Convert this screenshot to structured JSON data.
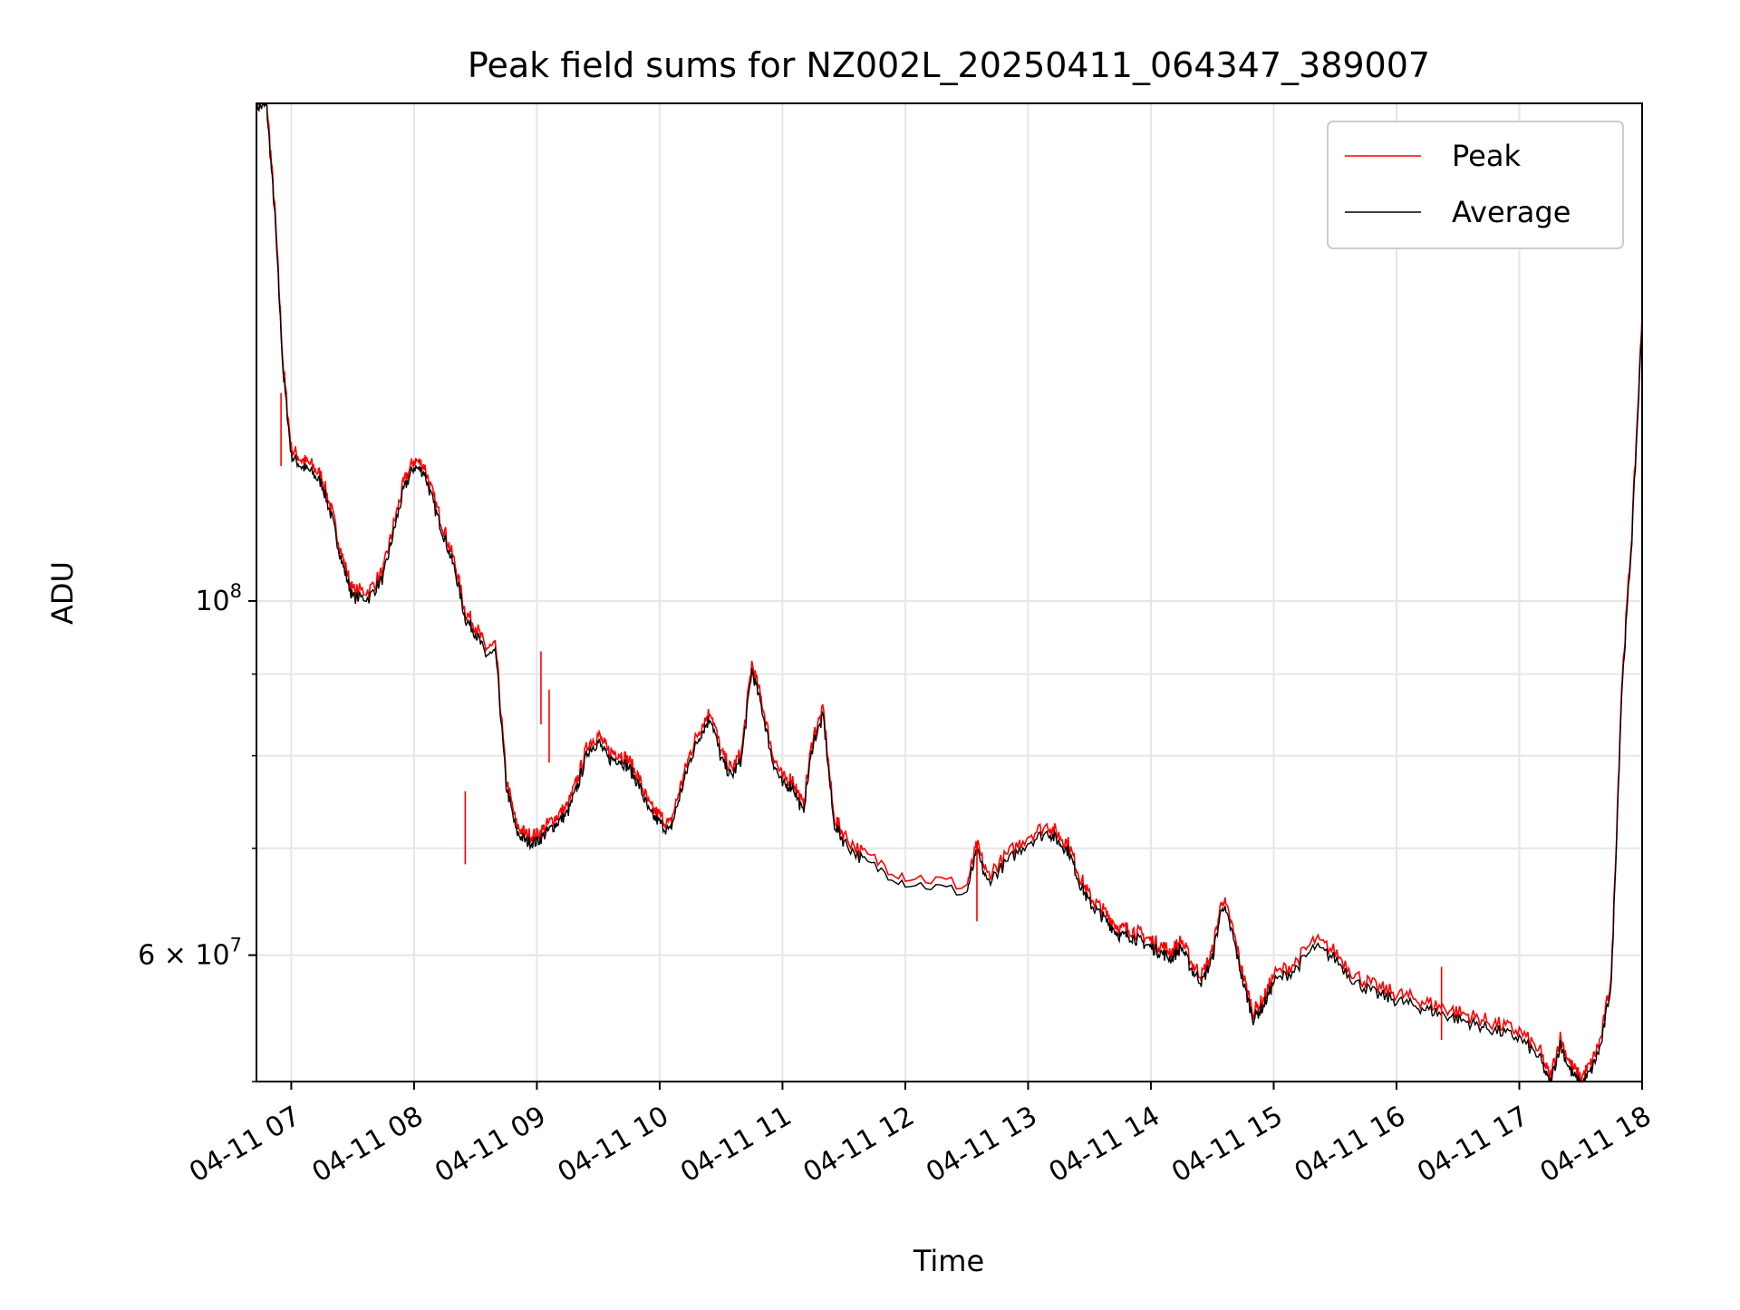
{
  "chart_data": {
    "type": "line",
    "title": "Peak field sums for NZ002L_20250411_064347_389007",
    "xlabel": "Time",
    "ylabel": "ADU",
    "yscale": "log",
    "grid": true,
    "legend_position": "top-right",
    "xlim": [
      "2025-04-11 06:43",
      "2025-04-11 18:00"
    ],
    "ylim": [
      50000000,
      205000000
    ],
    "x_ticks": [
      "04-11 07",
      "04-11 08",
      "04-11 09",
      "04-11 10",
      "04-11 11",
      "04-11 12",
      "04-11 13",
      "04-11 14",
      "04-11 15",
      "04-11 16",
      "04-11 17",
      "04-11 18"
    ],
    "y_ticks": [
      {
        "value": 100000000,
        "base": "10",
        "exp": "8",
        "mult": ""
      },
      {
        "value": 60000000,
        "base": "10",
        "exp": "7",
        "mult": "6 × "
      }
    ],
    "y_minor_ticks": [
      50000000,
      60000000,
      70000000,
      80000000,
      90000000
    ],
    "series": [
      {
        "name": "Peak",
        "color": "#ff0000",
        "x": [
          "2025-04-11 06:43",
          "2025-04-11 06:48",
          "2025-04-11 06:52",
          "2025-04-11 06:56",
          "2025-04-11 07:00",
          "2025-04-11 07:05",
          "2025-04-11 07:10",
          "2025-04-11 07:15",
          "2025-04-11 07:20",
          "2025-04-11 07:25",
          "2025-04-11 07:30",
          "2025-04-11 07:38",
          "2025-04-11 07:45",
          "2025-04-11 07:50",
          "2025-04-11 07:55",
          "2025-04-11 08:00",
          "2025-04-11 08:05",
          "2025-04-11 08:10",
          "2025-04-11 08:15",
          "2025-04-11 08:20",
          "2025-04-11 08:25",
          "2025-04-11 08:30",
          "2025-04-11 08:35",
          "2025-04-11 08:40",
          "2025-04-11 08:45",
          "2025-04-11 08:50",
          "2025-04-11 08:55",
          "2025-04-11 09:00",
          "2025-04-11 09:05",
          "2025-04-11 09:10",
          "2025-04-11 09:15",
          "2025-04-11 09:20",
          "2025-04-11 09:25",
          "2025-04-11 09:30",
          "2025-04-11 09:35",
          "2025-04-11 09:40",
          "2025-04-11 09:45",
          "2025-04-11 09:50",
          "2025-04-11 09:55",
          "2025-04-11 10:00",
          "2025-04-11 10:05",
          "2025-04-11 10:10",
          "2025-04-11 10:15",
          "2025-04-11 10:20",
          "2025-04-11 10:25",
          "2025-04-11 10:30",
          "2025-04-11 10:35",
          "2025-04-11 10:40",
          "2025-04-11 10:45",
          "2025-04-11 10:50",
          "2025-04-11 10:55",
          "2025-04-11 11:00",
          "2025-04-11 11:05",
          "2025-04-11 11:10",
          "2025-04-11 11:15",
          "2025-04-11 11:20",
          "2025-04-11 11:25",
          "2025-04-11 11:30",
          "2025-04-11 11:40",
          "2025-04-11 12:00",
          "2025-04-11 12:30",
          "2025-04-11 12:35",
          "2025-04-11 12:40",
          "2025-04-11 12:50",
          "2025-04-11 13:00",
          "2025-04-11 13:10",
          "2025-04-11 13:15",
          "2025-04-11 13:20",
          "2025-04-11 13:25",
          "2025-04-11 13:30",
          "2025-04-11 13:35",
          "2025-04-11 13:40",
          "2025-04-11 13:45",
          "2025-04-11 13:50",
          "2025-04-11 13:55",
          "2025-04-11 14:00",
          "2025-04-11 14:05",
          "2025-04-11 14:10",
          "2025-04-11 14:15",
          "2025-04-11 14:20",
          "2025-04-11 14:25",
          "2025-04-11 14:30",
          "2025-04-11 14:35",
          "2025-04-11 14:40",
          "2025-04-11 14:45",
          "2025-04-11 14:50",
          "2025-04-11 14:55",
          "2025-04-11 15:00",
          "2025-04-11 15:10",
          "2025-04-11 15:20",
          "2025-04-11 15:30",
          "2025-04-11 15:40",
          "2025-04-11 15:50",
          "2025-04-11 16:00",
          "2025-04-11 16:10",
          "2025-04-11 16:20",
          "2025-04-11 16:30",
          "2025-04-11 16:40",
          "2025-04-11 16:50",
          "2025-04-11 17:00",
          "2025-04-11 17:10",
          "2025-04-11 17:15",
          "2025-04-11 17:20",
          "2025-04-11 17:25",
          "2025-04-11 17:30",
          "2025-04-11 17:35",
          "2025-04-11 17:40",
          "2025-04-11 17:45",
          "2025-04-11 17:50",
          "2025-04-11 17:55",
          "2025-04-11 18:00"
        ],
        "values": [
          205000000,
          205000000,
          175000000,
          140000000,
          124000000,
          122000000,
          121000000,
          119000000,
          113000000,
          106000000,
          101000000,
          101000000,
          104000000,
          111000000,
          118000000,
          122000000,
          121000000,
          115000000,
          110000000,
          105000000,
          98000000,
          96000000,
          93000000,
          93000000,
          77000000,
          72000000,
          71000000,
          71000000,
          72000000,
          73000000,
          74000000,
          77000000,
          81000000,
          82000000,
          80000000,
          80000000,
          79000000,
          77000000,
          74000000,
          73000000,
          72000000,
          76000000,
          80000000,
          83000000,
          85000000,
          80000000,
          78000000,
          80000000,
          91000000,
          86000000,
          80000000,
          77000000,
          77000000,
          74000000,
          82000000,
          85000000,
          73000000,
          71000000,
          69000000,
          67000000,
          66000000,
          70000000,
          67000000,
          69000000,
          71000000,
          72000000,
          71000000,
          70000000,
          67000000,
          65000000,
          64000000,
          63000000,
          62000000,
          62000000,
          61500000,
          61000000,
          60500000,
          60000000,
          61000000,
          59000000,
          58000000,
          60000000,
          65000000,
          62000000,
          58000000,
          55000000,
          56000000,
          58000000,
          59000000,
          61000000,
          60000000,
          58000000,
          57000000,
          56500000,
          56000000,
          55500000,
          55000000,
          54500000,
          54000000,
          53500000,
          52000000,
          50000000,
          53000000,
          51000000,
          50000000,
          51000000,
          53000000,
          58000000,
          88000000,
          110000000,
          150000000
        ],
        "note_values": []
      },
      {
        "name": "Average",
        "color": "#000000",
        "x": [],
        "values": []
      }
    ]
  }
}
